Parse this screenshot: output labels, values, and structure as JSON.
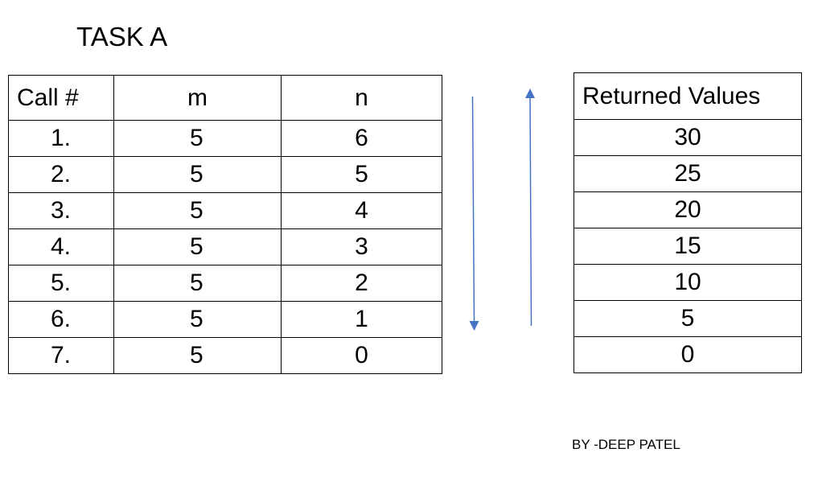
{
  "title": "TASK A",
  "calls_table": {
    "headers": [
      "Call #",
      "m",
      "n"
    ],
    "rows": [
      [
        "1.",
        "5",
        "6"
      ],
      [
        "2.",
        "5",
        "5"
      ],
      [
        "3.",
        "5",
        "4"
      ],
      [
        "4.",
        "5",
        "3"
      ],
      [
        "5.",
        "5",
        "2"
      ],
      [
        "6.",
        "5",
        "1"
      ],
      [
        "7.",
        "5",
        "0"
      ]
    ]
  },
  "returns_table": {
    "header": "Returned Values",
    "values": [
      "30",
      "25",
      "20",
      "15",
      "10",
      "5",
      "0"
    ]
  },
  "arrows": {
    "color": "#4472C4",
    "down_arrow": "arrow-down-icon",
    "up_arrow": "arrow-up-icon"
  },
  "credit": "BY -DEEP PATEL"
}
